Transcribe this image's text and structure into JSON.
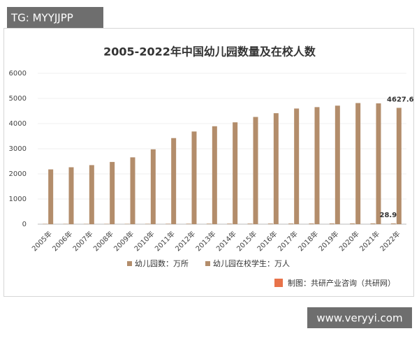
{
  "header_tag": "TG: MYYJJPP",
  "site_tag": "www.veryyi.com",
  "chart_data": {
    "type": "bar",
    "title": "2005-2022年中国幼儿园数量及在校人数",
    "categories": [
      "2005年",
      "2006年",
      "2007年",
      "2008年",
      "2009年",
      "2010年",
      "2011年",
      "2012年",
      "2013年",
      "2014年",
      "2015年",
      "2016年",
      "2017年",
      "2018年",
      "2019年",
      "2020年",
      "2021年",
      "2022年"
    ],
    "series": [
      {
        "name": "幼儿园数：万所",
        "color": "#b38d6b",
        "values": [
          12.44,
          13.05,
          12.91,
          13.37,
          13.82,
          15.04,
          16.68,
          18.13,
          19.86,
          20.99,
          22.37,
          23.98,
          25.5,
          26.67,
          28.12,
          29.17,
          29.48,
          28.92
        ],
        "value_labels": [
          null,
          null,
          null,
          null,
          null,
          null,
          null,
          null,
          null,
          null,
          null,
          null,
          null,
          null,
          null,
          null,
          null,
          "28.92"
        ]
      },
      {
        "name": "幼儿园在校学生：万人",
        "color": "#b38d6b",
        "values": [
          2179,
          2264,
          2349,
          2475,
          2658,
          2977,
          3424,
          3686,
          3895,
          4051,
          4265,
          4414,
          4600,
          4656,
          4714,
          4818,
          4805,
          4627.6
        ],
        "value_labels": [
          null,
          null,
          null,
          null,
          null,
          null,
          null,
          null,
          null,
          null,
          null,
          null,
          null,
          null,
          null,
          null,
          null,
          "4627.6"
        ]
      }
    ],
    "ylim": [
      0,
      6000
    ],
    "yticks": [
      0,
      1000,
      2000,
      3000,
      4000,
      5000,
      6000
    ],
    "grid": true,
    "source": "制图：共研产业咨询（共研网）"
  }
}
